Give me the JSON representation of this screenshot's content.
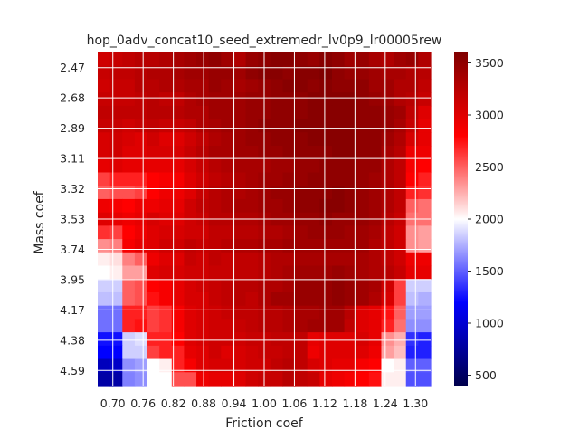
{
  "chart_data": {
    "type": "heatmap",
    "title": "hop_0adv_concat10_seed_extremedr_lv0p9_lr00005rew",
    "xlabel": "Friction coef",
    "ylabel": "Mass coef",
    "x_tick_labels": [
      "0.70",
      "0.76",
      "0.82",
      "0.88",
      "0.94",
      "1.00",
      "1.06",
      "1.12",
      "1.18",
      "1.24",
      "1.30"
    ],
    "y_tick_labels": [
      "2.47",
      "2.68",
      "2.89",
      "3.11",
      "3.32",
      "3.53",
      "3.74",
      "3.95",
      "4.17",
      "4.38",
      "4.59"
    ],
    "colorbar_ticks": [
      "500",
      "1000",
      "1500",
      "2000",
      "2500",
      "3000",
      "3500"
    ],
    "colormap": "seismic",
    "value_range": [
      400,
      3600
    ],
    "grid": true,
    "values": [
      [
        3100,
        3150,
        3200,
        3250,
        3250,
        3300,
        3350,
        3400,
        3450,
        3500,
        3400,
        3300,
        3450,
        3500,
        3550,
        3550,
        3500,
        3450,
        3550,
        3500,
        3400,
        3450,
        3350,
        3300,
        3400,
        3450,
        3300
      ],
      [
        3150,
        3200,
        3200,
        3250,
        3300,
        3300,
        3350,
        3400,
        3400,
        3450,
        3450,
        3400,
        3500,
        3550,
        3550,
        3500,
        3550,
        3550,
        3600,
        3500,
        3450,
        3450,
        3400,
        3350,
        3350,
        3300,
        3250
      ],
      [
        3100,
        3150,
        3150,
        3250,
        3250,
        3300,
        3300,
        3350,
        3350,
        3450,
        3400,
        3350,
        3400,
        3450,
        3500,
        3550,
        3550,
        3500,
        3550,
        3500,
        3500,
        3500,
        3400,
        3400,
        3300,
        3300,
        3200
      ],
      [
        3150,
        3150,
        3150,
        3200,
        3250,
        3200,
        3200,
        3300,
        3350,
        3400,
        3400,
        3400,
        3450,
        3450,
        3500,
        3500,
        3500,
        3550,
        3550,
        3550,
        3550,
        3500,
        3450,
        3400,
        3300,
        3250,
        3150
      ],
      [
        3200,
        3200,
        3200,
        3200,
        3250,
        3250,
        3250,
        3300,
        3300,
        3400,
        3400,
        3400,
        3450,
        3450,
        3500,
        3500,
        3500,
        3550,
        3550,
        3550,
        3550,
        3500,
        3500,
        3450,
        3400,
        3200,
        3000
      ],
      [
        3150,
        3150,
        3100,
        3150,
        3200,
        3150,
        3150,
        3200,
        3300,
        3350,
        3400,
        3400,
        3450,
        3500,
        3500,
        3500,
        3550,
        3550,
        3550,
        3550,
        3550,
        3500,
        3500,
        3450,
        3350,
        3150,
        2950
      ],
      [
        3050,
        3100,
        3050,
        3000,
        3100,
        3000,
        3000,
        3100,
        3200,
        3300,
        3350,
        3400,
        3450,
        3450,
        3500,
        3500,
        3500,
        3550,
        3550,
        3550,
        3550,
        3500,
        3500,
        3400,
        3300,
        3050,
        2950
      ],
      [
        3050,
        3100,
        3000,
        3000,
        3050,
        3050,
        3050,
        3150,
        3250,
        3350,
        3350,
        3400,
        3400,
        3450,
        3450,
        3500,
        3500,
        3500,
        3500,
        3550,
        3550,
        3500,
        3500,
        3350,
        3250,
        2900,
        2900
      ],
      [
        2950,
        3000,
        2950,
        2950,
        2950,
        2950,
        2950,
        3050,
        3150,
        3250,
        3300,
        3350,
        3350,
        3350,
        3400,
        3400,
        3450,
        3450,
        3500,
        3500,
        3500,
        3450,
        3450,
        3300,
        3200,
        2850,
        2800
      ],
      [
        2600,
        2700,
        2700,
        2700,
        2800,
        2850,
        2850,
        3000,
        3100,
        3200,
        3250,
        3300,
        3350,
        3400,
        3400,
        3450,
        3450,
        3500,
        3500,
        3500,
        3500,
        3450,
        3400,
        3300,
        3200,
        2800,
        2700
      ],
      [
        2500,
        2550,
        2550,
        2600,
        2800,
        2900,
        2900,
        3000,
        3150,
        3250,
        3300,
        3300,
        3350,
        3400,
        3450,
        3450,
        3500,
        3500,
        3500,
        3550,
        3500,
        3450,
        3400,
        3300,
        3200,
        2700,
        2650
      ],
      [
        2900,
        2850,
        2800,
        2900,
        2900,
        2950,
        2950,
        3100,
        3200,
        3250,
        3300,
        3350,
        3350,
        3400,
        3400,
        3450,
        3500,
        3500,
        3550,
        3550,
        3500,
        3450,
        3400,
        3300,
        3200,
        2500,
        2450
      ],
      [
        3000,
        2950,
        2900,
        2950,
        3050,
        3000,
        3000,
        3100,
        3150,
        3250,
        3250,
        3300,
        3300,
        3350,
        3400,
        3400,
        3450,
        3450,
        3500,
        3450,
        3450,
        3450,
        3400,
        3250,
        3150,
        2450,
        2450
      ],
      [
        2650,
        2600,
        2800,
        2900,
        3000,
        3050,
        3050,
        3100,
        3100,
        3200,
        3200,
        3250,
        3250,
        3300,
        3300,
        3350,
        3400,
        3450,
        3450,
        3450,
        3400,
        3400,
        3350,
        3200,
        3100,
        2350,
        2300
      ],
      [
        2350,
        2400,
        2850,
        2950,
        3000,
        3100,
        3100,
        3200,
        3150,
        3200,
        3250,
        3300,
        3300,
        3350,
        3350,
        3400,
        3400,
        3400,
        3400,
        3400,
        3400,
        3400,
        3300,
        3200,
        3100,
        2350,
        2300
      ],
      [
        2050,
        2100,
        2400,
        2500,
        2900,
        3000,
        3000,
        3150,
        3100,
        3200,
        3150,
        3200,
        3200,
        3250,
        3300,
        3300,
        3350,
        3350,
        3350,
        3350,
        3350,
        3350,
        3300,
        3200,
        3100,
        2900,
        2900
      ],
      [
        2000,
        2050,
        2300,
        2300,
        3000,
        3050,
        3050,
        3100,
        3100,
        3150,
        3150,
        3200,
        3200,
        3250,
        3300,
        3350,
        3400,
        3400,
        3400,
        3450,
        3400,
        3350,
        3300,
        3250,
        3150,
        2950,
        2950
      ],
      [
        1850,
        1850,
        2500,
        2550,
        2800,
        2850,
        2950,
        3050,
        3100,
        3150,
        3200,
        3250,
        3250,
        3300,
        3300,
        3350,
        3450,
        3450,
        3450,
        3500,
        3450,
        3400,
        3350,
        3100,
        2600,
        1850,
        1850
      ],
      [
        1800,
        1800,
        2500,
        2550,
        2750,
        2850,
        2950,
        3050,
        3050,
        3150,
        3200,
        3250,
        3200,
        3300,
        3400,
        3400,
        3450,
        3450,
        3450,
        3500,
        3450,
        3400,
        3300,
        3050,
        2600,
        1800,
        1750
      ],
      [
        1550,
        1550,
        2700,
        2700,
        2600,
        2650,
        2850,
        3000,
        3050,
        3100,
        3150,
        3200,
        3200,
        3250,
        3250,
        3300,
        3350,
        3350,
        3400,
        3400,
        3250,
        3000,
        2950,
        2750,
        2500,
        1700,
        1700
      ],
      [
        1550,
        1550,
        2700,
        2750,
        2600,
        2650,
        2850,
        3000,
        3050,
        3100,
        3100,
        3150,
        3200,
        3250,
        3250,
        3300,
        3350,
        3400,
        3400,
        3400,
        3200,
        3000,
        2950,
        2700,
        2450,
        1650,
        1650
      ],
      [
        1250,
        1250,
        1850,
        1900,
        2700,
        2700,
        2800,
        3000,
        3050,
        3100,
        3100,
        3100,
        3150,
        3150,
        3200,
        3200,
        3200,
        2950,
        3000,
        3000,
        3000,
        3050,
        2950,
        2350,
        2250,
        1350,
        1300
      ],
      [
        1200,
        1200,
        1850,
        1850,
        2600,
        2700,
        2700,
        2950,
        3000,
        3100,
        3000,
        3050,
        3100,
        3150,
        3150,
        3200,
        3200,
        2900,
        3000,
        3000,
        3000,
        3000,
        2900,
        2300,
        2200,
        1300,
        1300
      ],
      [
        900,
        950,
        1650,
        1700,
        2000,
        2050,
        2700,
        2850,
        3000,
        3050,
        3050,
        3050,
        3100,
        3100,
        3200,
        3250,
        3200,
        3050,
        3000,
        2950,
        2950,
        2850,
        2800,
        2000,
        2050,
        1500,
        1500
      ],
      [
        800,
        800,
        1600,
        1650,
        2000,
        2000,
        2550,
        2550,
        2900,
        2950,
        2950,
        3000,
        3100,
        3150,
        3150,
        3250,
        3200,
        3150,
        2950,
        2900,
        2850,
        2800,
        2750,
        2050,
        2050,
        1450,
        1450
      ]
    ]
  }
}
